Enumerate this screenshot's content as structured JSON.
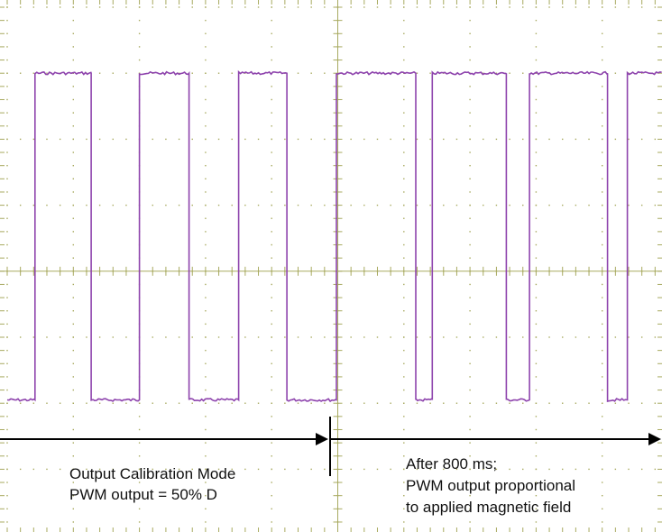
{
  "chart_data": {
    "type": "line",
    "title": "",
    "xlabel": "",
    "ylabel": "",
    "grid": true,
    "grid_divisions": {
      "x": 10,
      "y": 8
    },
    "xlim": [
      0,
      10
    ],
    "ylim": [
      0,
      8
    ],
    "levels": {
      "low": 2.05,
      "high": 7.0
    },
    "series": [
      {
        "name": "",
        "color": "#8e44ad",
        "high_intervals": [
          [
            0.42,
            1.27
          ],
          [
            2.0,
            2.75
          ],
          [
            3.5,
            4.23
          ],
          [
            4.98,
            6.18
          ],
          [
            6.43,
            7.55
          ],
          [
            7.9,
            9.08
          ],
          [
            9.38,
            10.0
          ]
        ]
      }
    ],
    "annotations": {
      "phase1": {
        "lines": [
          "Output Calibration Mode",
          "PWM output = 50% D"
        ]
      },
      "phase2": {
        "lines": [
          "After 800 ms;",
          "PWM output proportional",
          "to applied magnetic field"
        ]
      }
    },
    "colors": {
      "grid": "#a8aa60",
      "arrow": "#000000",
      "trace": "#8e44ad"
    }
  }
}
